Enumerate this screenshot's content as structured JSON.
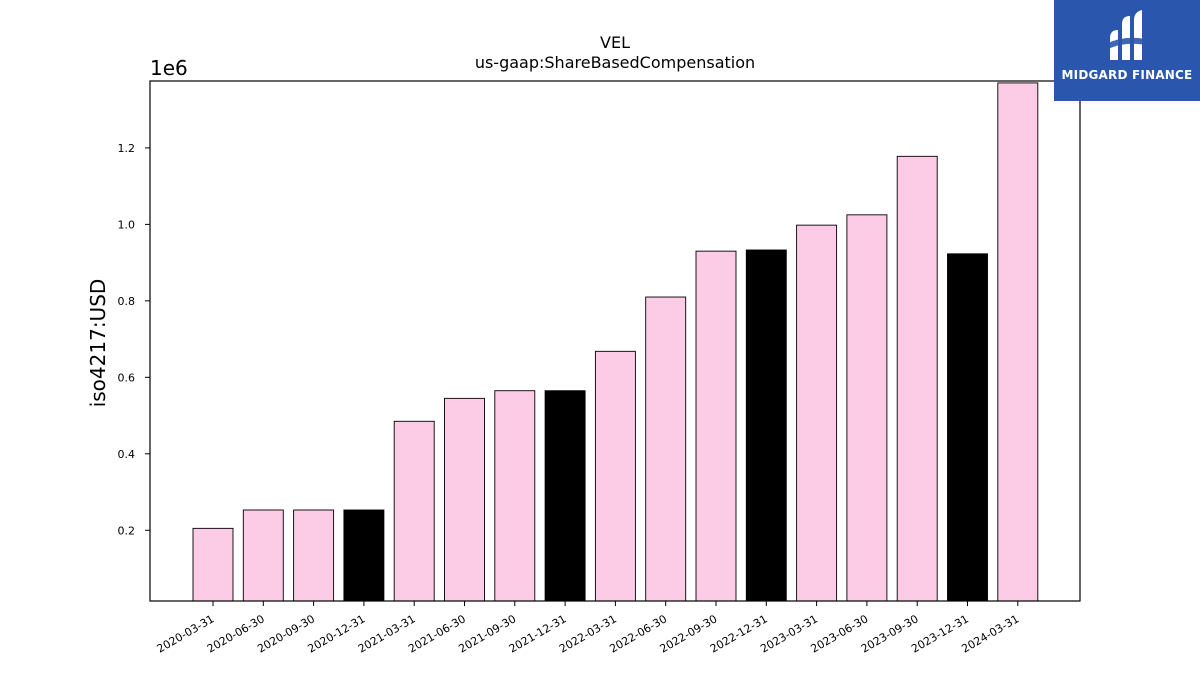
{
  "chart_data": {
    "type": "bar",
    "title": "VEL",
    "subtitle": "us-gaap:ShareBasedCompensation",
    "ylabel": "iso4217:USD",
    "xlabel": "",
    "y_scale_label": "1e6",
    "ylim": [
      0.015,
      1.375
    ],
    "yticks": [
      "0.2",
      "0.4",
      "0.6",
      "0.8",
      "1.0",
      "1.2"
    ],
    "categories": [
      "2020-03-31",
      "2020-06-30",
      "2020-09-30",
      "2020-12-31",
      "2021-03-31",
      "2021-06-30",
      "2021-09-30",
      "2021-12-31",
      "2022-03-31",
      "2022-06-30",
      "2022-09-30",
      "2022-12-31",
      "2023-03-31",
      "2023-06-30",
      "2023-09-30",
      "2023-12-31",
      "2024-03-31"
    ],
    "values": [
      0.205,
      0.253,
      0.253,
      0.253,
      0.485,
      0.545,
      0.565,
      0.565,
      0.668,
      0.81,
      0.93,
      0.933,
      0.998,
      1.025,
      1.178,
      0.923,
      1.37
    ],
    "bar_colors": [
      "#fccbe6",
      "#fccbe6",
      "#fccbe6",
      "#000000",
      "#fccbe6",
      "#fccbe6",
      "#fccbe6",
      "#000000",
      "#fccbe6",
      "#fccbe6",
      "#fccbe6",
      "#000000",
      "#fccbe6",
      "#fccbe6",
      "#fccbe6",
      "#000000",
      "#fccbe6"
    ],
    "grid": false
  },
  "logo": {
    "text": "MIDGARD FINANCE",
    "background": "#2a56ad"
  }
}
